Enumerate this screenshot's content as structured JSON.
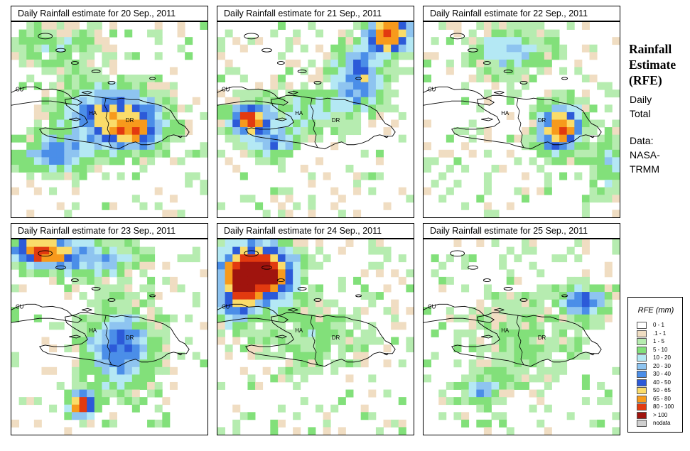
{
  "panels": [
    {
      "title": "Daily Rainfall estimate for  20 Sep., 2011",
      "seed": 11,
      "labels": [
        "CU",
        "HA",
        "DR"
      ],
      "blobs": [
        [
          0.52,
          0.47,
          0.32,
          0.18,
          3.4
        ],
        [
          0.22,
          0.68,
          0.22,
          0.12,
          2.5
        ],
        [
          0.62,
          0.58,
          0.2,
          0.12,
          2.5
        ],
        [
          0.25,
          0.12,
          0.3,
          0.14,
          1.2
        ]
      ]
    },
    {
      "title": "Daily Rainfall estimate for  21 Sep., 2011",
      "seed": 23,
      "labels": [
        "CU",
        "HA",
        "DR"
      ],
      "blobs": [
        [
          0.88,
          0.06,
          0.14,
          0.12,
          5.0
        ],
        [
          0.72,
          0.28,
          0.16,
          0.2,
          3.0
        ],
        [
          0.16,
          0.5,
          0.12,
          0.1,
          4.6
        ],
        [
          0.28,
          0.62,
          0.14,
          0.1,
          2.5
        ],
        [
          0.45,
          0.45,
          0.3,
          0.15,
          1.5
        ]
      ]
    },
    {
      "title": "Daily Rainfall estimate for  22 Sep., 2011",
      "seed": 37,
      "labels": [
        "CU",
        "HA",
        "DR"
      ],
      "blobs": [
        [
          0.7,
          0.55,
          0.14,
          0.15,
          4.6
        ],
        [
          0.45,
          0.15,
          0.25,
          0.15,
          2.0
        ],
        [
          0.95,
          0.72,
          0.1,
          0.22,
          1.5
        ]
      ]
    },
    {
      "title": "Daily Rainfall estimate for  23 Sep., 2011",
      "seed": 51,
      "labels": [
        "CU",
        "HA",
        "DR"
      ],
      "blobs": [
        [
          0.15,
          0.06,
          0.18,
          0.1,
          4.6
        ],
        [
          0.55,
          0.56,
          0.22,
          0.25,
          3.0
        ],
        [
          0.36,
          0.85,
          0.08,
          0.08,
          5.0
        ],
        [
          0.4,
          0.1,
          0.3,
          0.12,
          2.2
        ]
      ]
    },
    {
      "title": "Daily Rainfall estimate for  24 Sep., 2011",
      "seed": 67,
      "labels": [
        "CU",
        "HA",
        "DR"
      ],
      "blobs": [
        [
          0.23,
          0.17,
          0.2,
          0.18,
          6.2
        ],
        [
          0.1,
          0.25,
          0.12,
          0.25,
          3.2
        ],
        [
          0.5,
          0.5,
          0.35,
          0.2,
          1.2
        ]
      ]
    },
    {
      "title": "Daily Rainfall estimate for  25 Sep., 2011",
      "seed": 79,
      "labels": [
        "CU",
        "HA",
        "DR"
      ],
      "blobs": [
        [
          0.82,
          0.32,
          0.14,
          0.1,
          2.8
        ],
        [
          0.3,
          0.78,
          0.12,
          0.08,
          2.2
        ],
        [
          0.5,
          0.5,
          0.4,
          0.3,
          0.9
        ]
      ]
    }
  ],
  "side": {
    "title_lines": [
      "Rainfall",
      "Estimate",
      "(RFE)"
    ],
    "desc_lines": [
      "Daily",
      "Total"
    ],
    "data_lines": [
      "Data:",
      "NASA-",
      "TRMM"
    ]
  },
  "legend": {
    "title": "RFE (mm)",
    "items": [
      {
        "label": "0 - 1",
        "color": "#ffffff"
      },
      {
        "label": ".1 - 1",
        "color": "#f0ddc2"
      },
      {
        "label": "1 - 5",
        "color": "#b6ecb0"
      },
      {
        "label": "5 - 10",
        "color": "#82e07a"
      },
      {
        "label": "10 - 20",
        "color": "#b4e8f4"
      },
      {
        "label": "20 - 30",
        "color": "#8ec4f0"
      },
      {
        "label": "30 - 40",
        "color": "#4b8ee8"
      },
      {
        "label": "40 - 50",
        "color": "#2c5ad8"
      },
      {
        "label": "50 - 65",
        "color": "#fadc6a"
      },
      {
        "label": "65 - 80",
        "color": "#f79a1c"
      },
      {
        "label": "80 - 100",
        "color": "#e23a10"
      },
      {
        "label": "> 100",
        "color": "#a0140e"
      },
      {
        "label": "nodata",
        "color": "#cfcfcf"
      }
    ]
  }
}
